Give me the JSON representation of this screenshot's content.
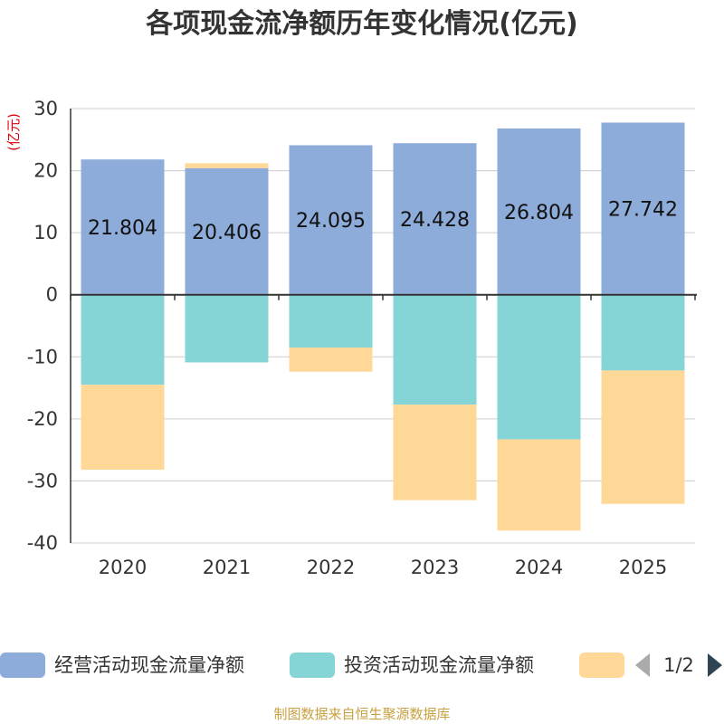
{
  "chart_data": {
    "type": "bar",
    "stacked": true,
    "title": "各项现金流净额历年变化情况(亿元)",
    "ylabel": "(亿元)",
    "xlabel": "",
    "categories": [
      "2020",
      "2021",
      "2022",
      "2023",
      "2024",
      "2025"
    ],
    "ylim": [
      -40,
      30
    ],
    "yticks": [
      30,
      20,
      10,
      0,
      -10,
      -20,
      -30,
      -40
    ],
    "grid": true,
    "series": [
      {
        "name": "经营活动现金流量净额",
        "color": "#8EACDA",
        "values": [
          21.804,
          20.406,
          24.095,
          24.428,
          26.804,
          27.742
        ],
        "show_labels": true
      },
      {
        "name": "投资活动现金流量净额",
        "color": "#85D5D6",
        "values": [
          -14.5,
          -10.9,
          -8.5,
          -17.7,
          -23.3,
          -12.2
        ],
        "show_labels": false
      },
      {
        "name": "",
        "color": "#FFD898",
        "values": [
          -13.7,
          0.8,
          -3.9,
          -15.4,
          -14.7,
          -21.5
        ],
        "show_labels": false
      }
    ],
    "legend": {
      "position": "bottom",
      "page": "1/2"
    }
  },
  "source": "制图数据来自恒生聚源数据库",
  "colors": {
    "ylabel": "#E0000A",
    "source": "#C8A040",
    "axis": "#333333",
    "grid": "#CCCCCC",
    "pager_inactive": "#AAAAAA",
    "pager_active": "#2F4554"
  }
}
